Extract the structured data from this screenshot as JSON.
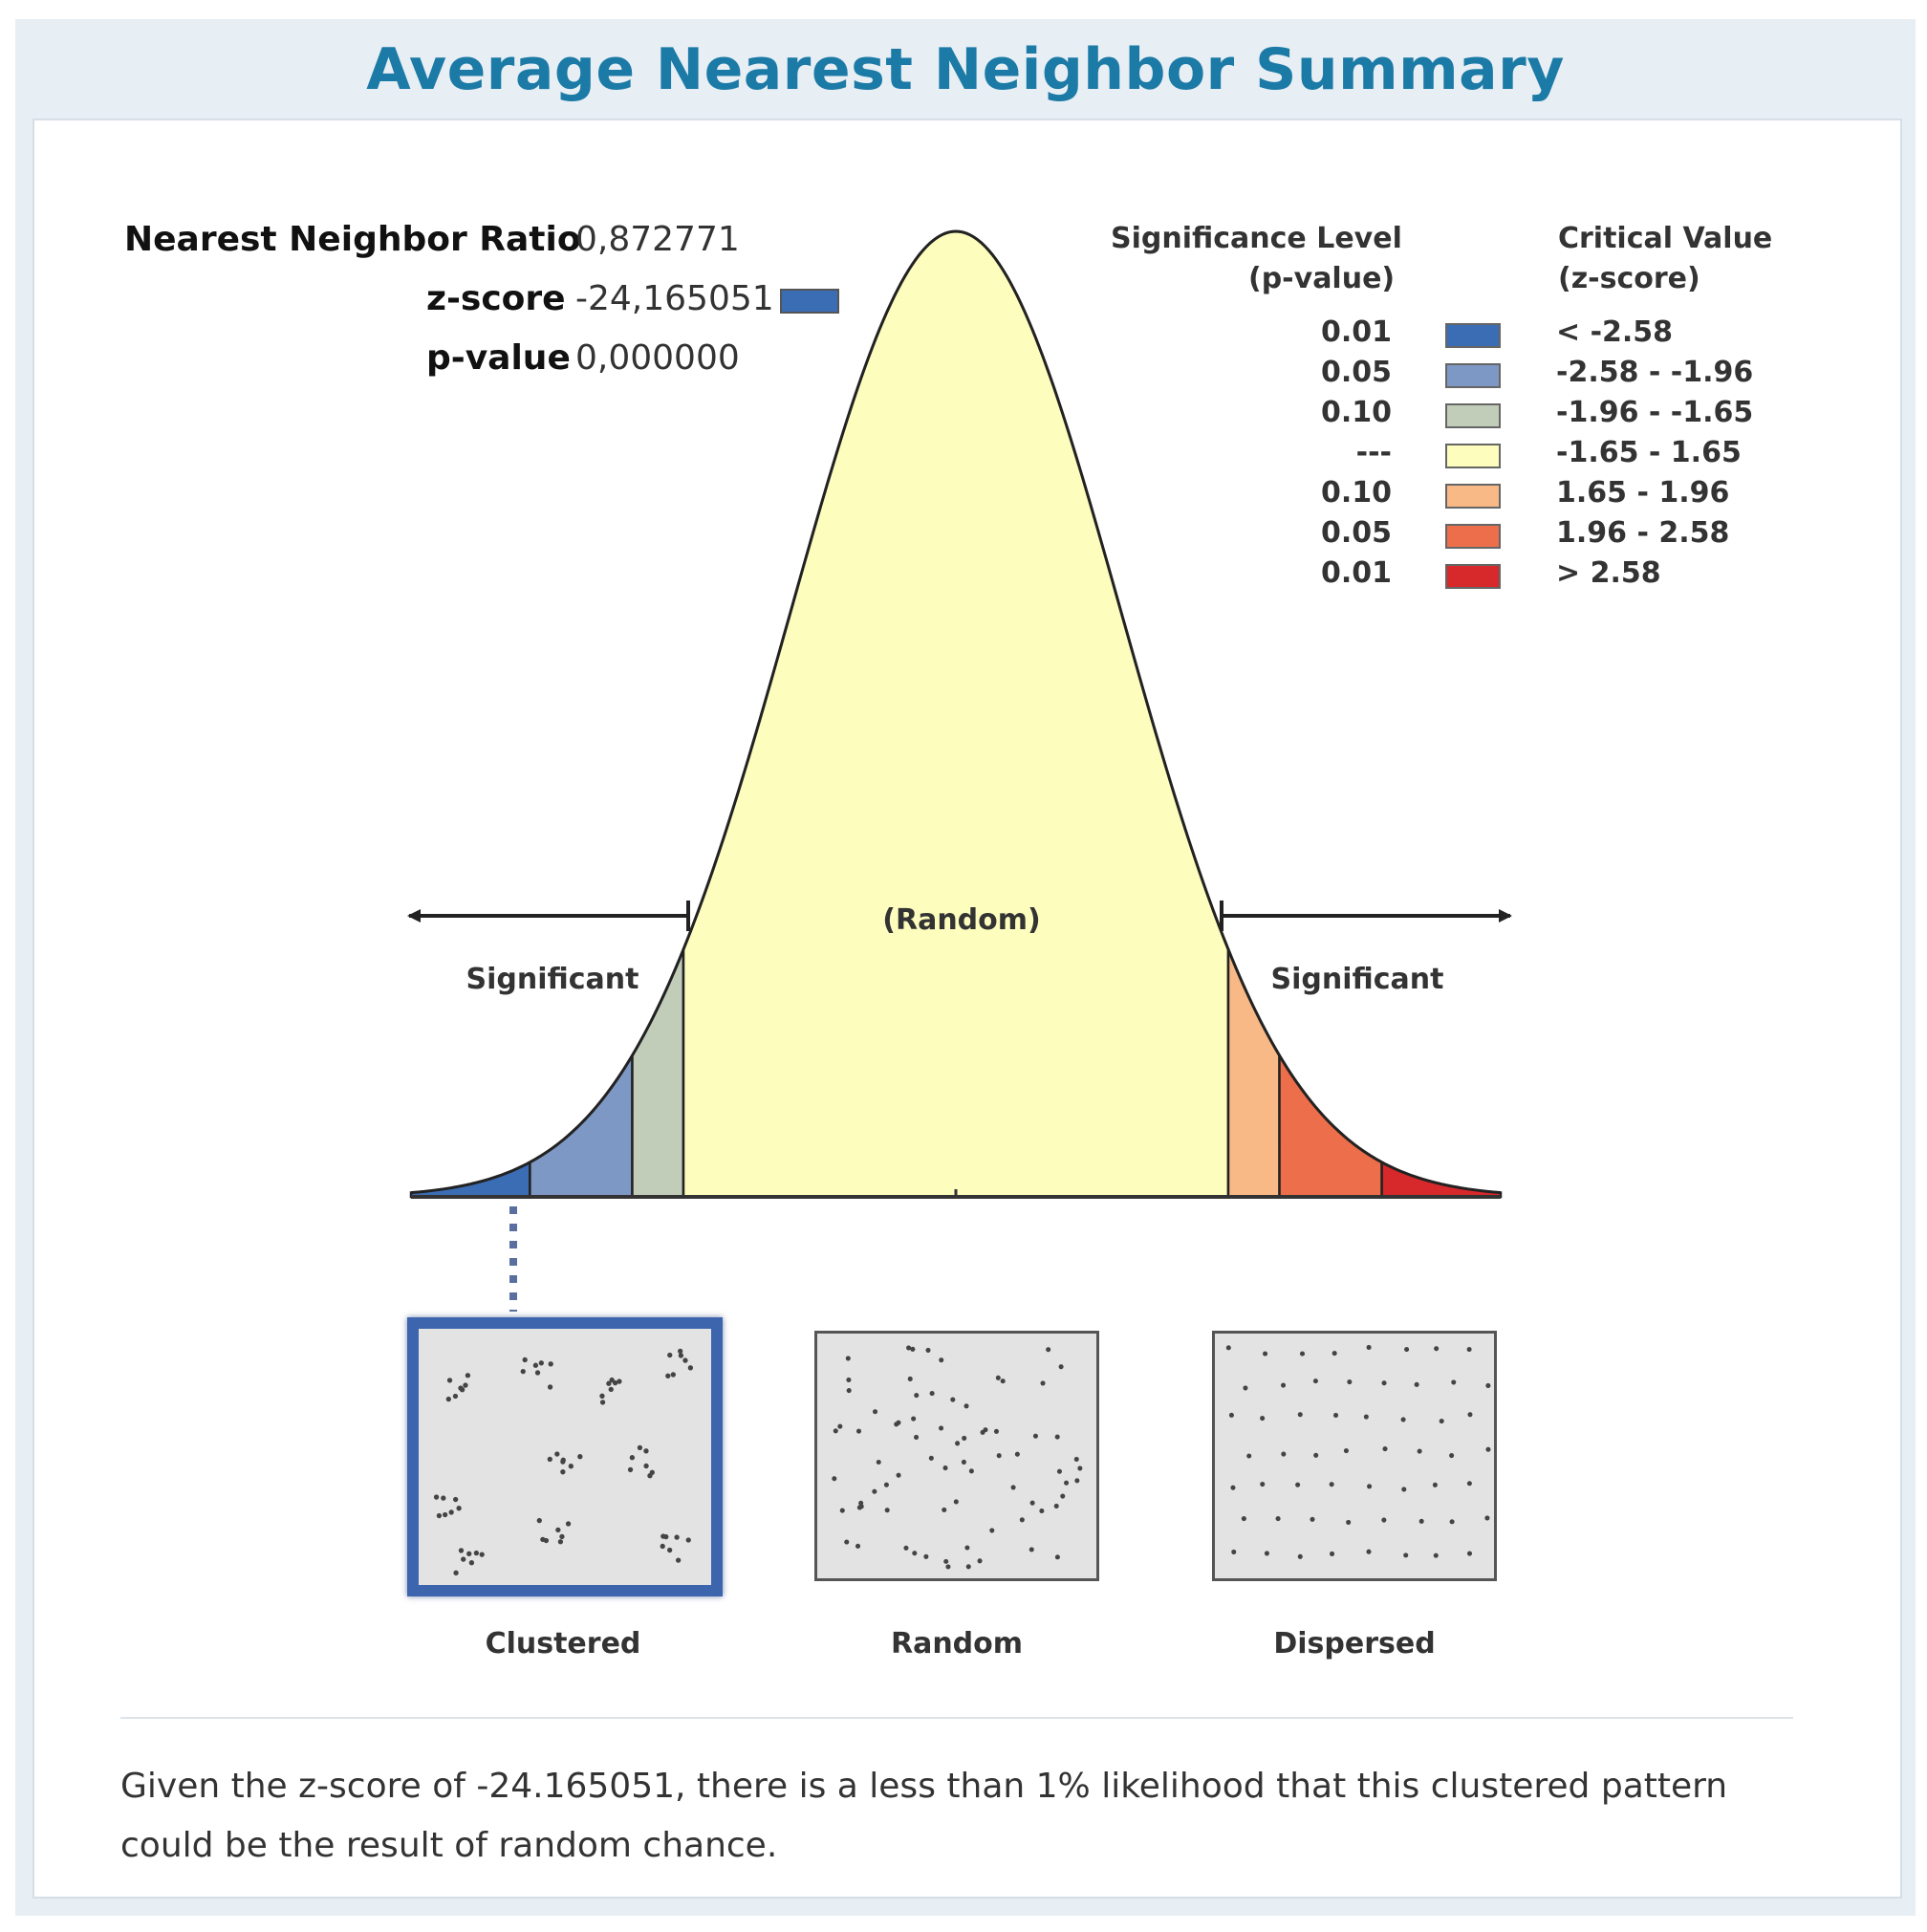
{
  "title": "Average Nearest Neighbor Summary",
  "stats": {
    "ratio_label": "Nearest Neighbor Ratio",
    "ratio_value": "0,872771",
    "z_label": "z-score",
    "z_value": "-24,165051",
    "p_label": "p-value",
    "p_value": "0,000000"
  },
  "legend": {
    "col1_header_1": "Significance Level",
    "col1_header_2": "(p-value)",
    "col2_header_1": "Critical Value",
    "col2_header_2": "(z-score)",
    "rows": [
      {
        "p": "0.01",
        "z": "< -2.58",
        "color": "#3b6db4"
      },
      {
        "p": "0.05",
        "z": "-2.58 - -1.96",
        "color": "#7d98c4"
      },
      {
        "p": "0.10",
        "z": "-1.96 - -1.65",
        "color": "#c2cdb9"
      },
      {
        "p": "---",
        "z": "-1.65 - 1.65",
        "color": "#fdfdbd"
      },
      {
        "p": "0.10",
        "z": "1.65 - 1.96",
        "color": "#f8b986"
      },
      {
        "p": "0.05",
        "z": "1.96 - 2.58",
        "color": "#ec6e4a"
      },
      {
        "p": "0.01",
        "z": "> 2.58",
        "color": "#d7282b"
      }
    ]
  },
  "chart_data": {
    "type": "area",
    "title": "Average Nearest Neighbor Summary",
    "distribution": "standard normal",
    "x_range": [
      -3.3,
      3.3
    ],
    "region_breaks": [
      -2.58,
      -1.96,
      -1.65,
      1.65,
      1.96,
      2.58
    ],
    "region_colors": [
      "#3b6db4",
      "#7d98c4",
      "#c2cdb9",
      "#fdfdbd",
      "#f8b986",
      "#ec6e4a",
      "#d7282b"
    ],
    "observed_region": "< -2.58",
    "center_label": "(Random)",
    "left_label": "Significant",
    "right_label": "Significant"
  },
  "patterns": [
    {
      "label": "Clustered",
      "selected": true
    },
    {
      "label": "Random",
      "selected": false
    },
    {
      "label": "Dispersed",
      "selected": false
    }
  ],
  "footer": "Given the z-score of -24.165051, there is a less than 1% likelihood that this clustered pattern could be the result of random chance."
}
